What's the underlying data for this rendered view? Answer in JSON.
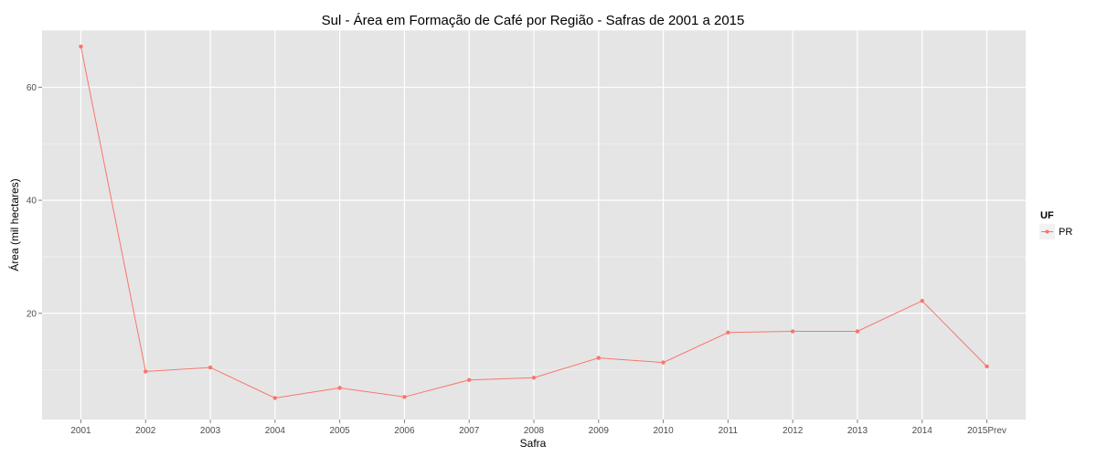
{
  "chart_data": {
    "type": "line",
    "title": "Sul  - Área em Formação de Café por Região - Safras de 2001 a 2015",
    "xlabel": "Safra",
    "ylabel": "Área (mil hectares)",
    "categories": [
      "2001",
      "2002",
      "2003",
      "2004",
      "2005",
      "2006",
      "2007",
      "2008",
      "2009",
      "2010",
      "2011",
      "2012",
      "2013",
      "2014",
      "2015Prev"
    ],
    "series": [
      {
        "name": "PR",
        "color": "#F8766D",
        "values": [
          67.2,
          9.7,
          10.4,
          5.0,
          6.8,
          5.2,
          8.2,
          8.6,
          12.1,
          11.3,
          16.6,
          16.8,
          16.8,
          22.2,
          10.6
        ]
      }
    ],
    "ylim": [
      1.2,
      70.1
    ],
    "yticks": [
      20,
      40,
      60
    ],
    "grid": true,
    "background": "#E5E5E5",
    "legend": {
      "title": "UF",
      "position": "right"
    }
  }
}
